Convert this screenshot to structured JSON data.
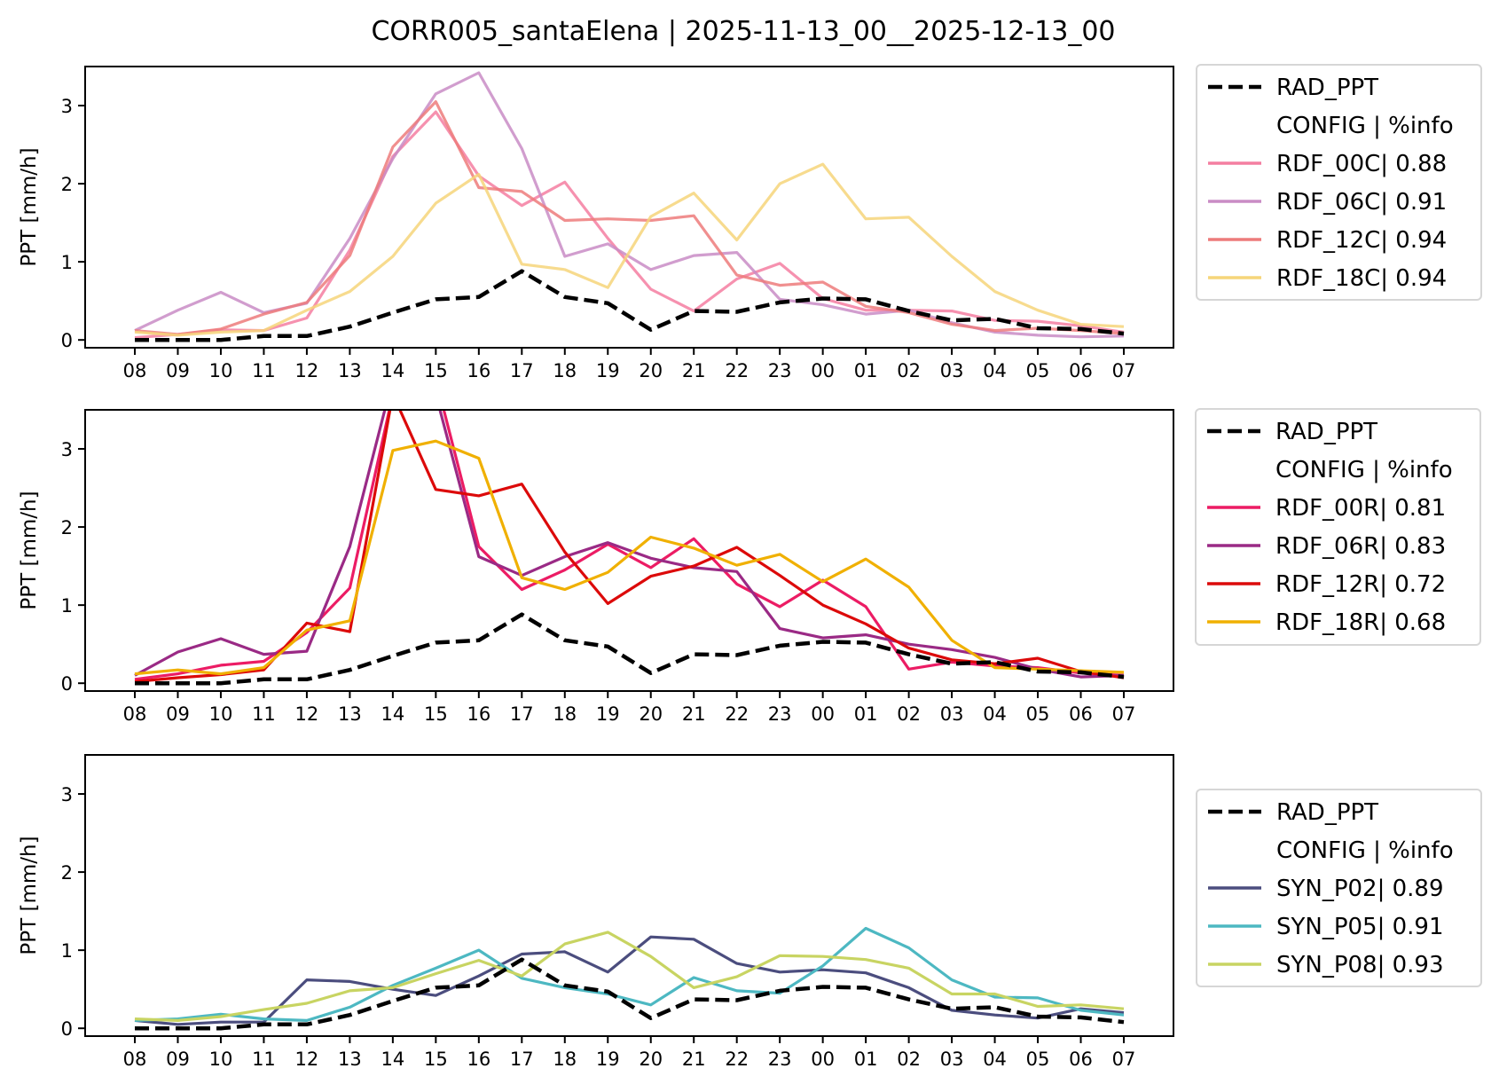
{
  "chart_data": {
    "title": "CORR005_santaElena | 2025-11-13_00__2025-12-13_00",
    "type": "line",
    "x": [
      "08",
      "09",
      "10",
      "11",
      "12",
      "13",
      "14",
      "15",
      "16",
      "17",
      "18",
      "19",
      "20",
      "21",
      "22",
      "23",
      "00",
      "01",
      "02",
      "03",
      "04",
      "05",
      "06",
      "07"
    ],
    "panels": [
      {
        "ylabel": "PPT [mm/h]",
        "ylim": [
          -0.1,
          3.5
        ],
        "yticks": [
          0,
          1,
          2,
          3
        ],
        "legend_placement": "outside-right-top",
        "legend_header": "CONFIG  | %info",
        "series": [
          {
            "name": "RAD_PPT",
            "label": "RAD_PPT",
            "color": "#000000",
            "dashed": true,
            "values": [
              0,
              0,
              0,
              0.05,
              0.05,
              0.17,
              0.35,
              0.52,
              0.55,
              0.88,
              0.55,
              0.47,
              0.13,
              0.37,
              0.36,
              0.48,
              0.53,
              0.52,
              0.37,
              0.25,
              0.27,
              0.15,
              0.14,
              0.08
            ]
          },
          {
            "name": "RDF_00C",
            "label": "RDF_00C| 0.88",
            "color": "#f47ea1",
            "values": [
              0.03,
              0.07,
              0.13,
              0.12,
              0.28,
              1.15,
              2.35,
              2.92,
              2.1,
              1.72,
              2.02,
              1.3,
              0.65,
              0.37,
              0.78,
              0.98,
              0.53,
              0.38,
              0.38,
              0.37,
              0.25,
              0.24,
              0.18,
              0.1
            ]
          },
          {
            "name": "RDF_06C",
            "label": "RDF_06C| 0.91",
            "color": "#c98cc5",
            "values": [
              0.12,
              0.38,
              0.61,
              0.35,
              0.47,
              1.3,
              2.32,
              3.15,
              3.42,
              2.45,
              1.07,
              1.23,
              0.9,
              1.08,
              1.12,
              0.52,
              0.45,
              0.33,
              0.38,
              0.22,
              0.1,
              0.06,
              0.04,
              0.05
            ]
          },
          {
            "name": "RDF_12C",
            "label": "RDF_12C| 0.94",
            "color": "#ed7b7b",
            "values": [
              0.12,
              0.07,
              0.14,
              0.33,
              0.48,
              1.08,
              2.47,
              3.05,
              1.95,
              1.9,
              1.53,
              1.55,
              1.53,
              1.59,
              0.83,
              0.7,
              0.74,
              0.43,
              0.35,
              0.2,
              0.12,
              0.15,
              0.12,
              0.08
            ]
          },
          {
            "name": "RDF_18C",
            "label": "RDF_18C| 0.94",
            "color": "#f6d57a",
            "values": [
              0.1,
              0.06,
              0.1,
              0.12,
              0.38,
              0.62,
              1.07,
              1.75,
              2.12,
              0.97,
              0.9,
              0.67,
              1.58,
              1.88,
              1.28,
              2.0,
              2.25,
              1.55,
              1.57,
              1.07,
              0.62,
              0.38,
              0.2,
              0.17
            ]
          }
        ]
      },
      {
        "ylabel": "PPT [mm/h]",
        "ylim": [
          -0.1,
          3.5
        ],
        "yticks": [
          0,
          1,
          2,
          3
        ],
        "legend_placement": "outside-right-top",
        "legend_header": "CONFIG  | %info",
        "series": [
          {
            "name": "RAD_PPT",
            "label": "RAD_PPT",
            "color": "#000000",
            "dashed": true,
            "values": [
              0,
              0,
              0,
              0.05,
              0.05,
              0.17,
              0.35,
              0.52,
              0.55,
              0.88,
              0.55,
              0.47,
              0.13,
              0.37,
              0.36,
              0.48,
              0.53,
              0.52,
              0.37,
              0.25,
              0.27,
              0.15,
              0.14,
              0.08
            ]
          },
          {
            "name": "RDF_00R",
            "label": "RDF_00R| 0.81",
            "color": "#ec1c64",
            "values": [
              0.05,
              0.12,
              0.23,
              0.28,
              0.65,
              1.22,
              3.7,
              3.9,
              1.75,
              1.2,
              1.45,
              1.78,
              1.48,
              1.85,
              1.27,
              0.98,
              1.32,
              0.98,
              0.18,
              0.27,
              0.22,
              0.2,
              0.13,
              0.1
            ]
          },
          {
            "name": "RDF_06R",
            "label": "RDF_06R| 0.83",
            "color": "#9a2a85",
            "values": [
              0.1,
              0.4,
              0.57,
              0.37,
              0.41,
              1.75,
              3.9,
              3.7,
              1.62,
              1.38,
              1.62,
              1.8,
              1.6,
              1.48,
              1.43,
              0.7,
              0.58,
              0.62,
              0.5,
              0.43,
              0.33,
              0.18,
              0.08,
              0.1
            ]
          },
          {
            "name": "RDF_12R",
            "label": "RDF_12R| 0.72",
            "color": "#dc0a0a",
            "values": [
              0.02,
              0.07,
              0.11,
              0.17,
              0.77,
              0.66,
              3.7,
              2.48,
              2.4,
              2.55,
              1.68,
              1.02,
              1.37,
              1.5,
              1.74,
              1.38,
              1.0,
              0.76,
              0.45,
              0.3,
              0.25,
              0.32,
              0.15,
              0.07
            ]
          },
          {
            "name": "RDF_18R",
            "label": "RDF_18R| 0.68",
            "color": "#f0b000",
            "values": [
              0.12,
              0.17,
              0.12,
              0.2,
              0.68,
              0.8,
              2.98,
              3.1,
              2.88,
              1.35,
              1.2,
              1.42,
              1.87,
              1.73,
              1.51,
              1.65,
              1.3,
              1.59,
              1.23,
              0.55,
              0.2,
              0.18,
              0.16,
              0.14
            ]
          }
        ]
      },
      {
        "ylabel": "PPT [mm/h]",
        "ylim": [
          -0.1,
          3.5
        ],
        "yticks": [
          0,
          1,
          2,
          3
        ],
        "legend_placement": "outside-right-center",
        "legend_header": "CONFIG  | %info",
        "series": [
          {
            "name": "RAD_PPT",
            "label": "RAD_PPT",
            "color": "#000000",
            "dashed": true,
            "values": [
              0,
              0,
              0,
              0.05,
              0.05,
              0.17,
              0.35,
              0.52,
              0.55,
              0.88,
              0.55,
              0.47,
              0.13,
              0.37,
              0.36,
              0.48,
              0.53,
              0.52,
              0.37,
              0.25,
              0.27,
              0.15,
              0.14,
              0.08
            ]
          },
          {
            "name": "SYN_P02",
            "label": "SYN_P02| 0.89",
            "color": "#4b4d7e",
            "values": [
              0.1,
              0.05,
              0.08,
              0.08,
              0.62,
              0.6,
              0.5,
              0.42,
              0.67,
              0.95,
              0.98,
              0.72,
              1.17,
              1.14,
              0.83,
              0.72,
              0.75,
              0.71,
              0.52,
              0.23,
              0.17,
              0.13,
              0.25,
              0.2
            ]
          },
          {
            "name": "SYN_P05",
            "label": "SYN_P05| 0.91",
            "color": "#4db8c2",
            "values": [
              0.1,
              0.12,
              0.18,
              0.12,
              0.1,
              0.27,
              0.55,
              0.77,
              1.0,
              0.64,
              0.52,
              0.44,
              0.3,
              0.65,
              0.48,
              0.45,
              0.8,
              1.28,
              1.03,
              0.62,
              0.4,
              0.39,
              0.23,
              0.17
            ]
          },
          {
            "name": "SYN_P08",
            "label": "SYN_P08| 0.93",
            "color": "#c8d462",
            "values": [
              0.12,
              0.1,
              0.15,
              0.24,
              0.32,
              0.48,
              0.52,
              0.7,
              0.87,
              0.67,
              1.08,
              1.23,
              0.92,
              0.52,
              0.66,
              0.93,
              0.92,
              0.88,
              0.77,
              0.44,
              0.44,
              0.28,
              0.3,
              0.25
            ]
          }
        ]
      }
    ]
  }
}
